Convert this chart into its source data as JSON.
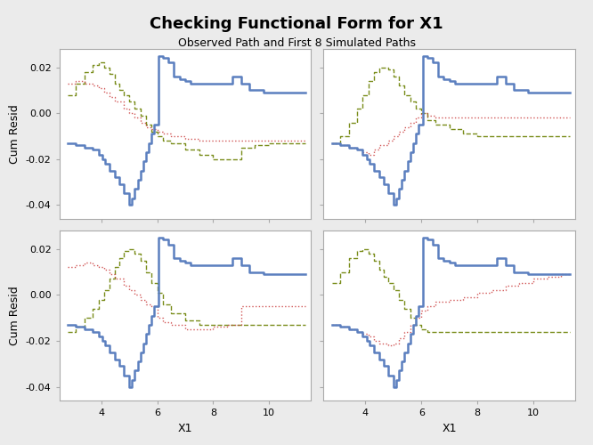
{
  "title": "Checking Functional Form for X1",
  "subtitle": "Observed Path and First 8 Simulated Paths",
  "xlabel": "X1",
  "ylabel": "Cum Resid",
  "xlim": [
    2.5,
    11.5
  ],
  "ylim": [
    -0.046,
    0.028
  ],
  "yticks": [
    -0.04,
    -0.02,
    0.0,
    0.02
  ],
  "xticks": [
    4,
    6,
    8,
    10
  ],
  "blue_color": "#5B7FBF",
  "red_color": "#CC4444",
  "olive_color": "#6B8000",
  "bg_color": "#EBEBEB",
  "panel_bg": "#FFFFFF",
  "title_fontsize": 13,
  "subtitle_fontsize": 9,
  "axis_label_fontsize": 9,
  "tick_fontsize": 8,
  "blue_lw": 1.8,
  "sim_lw": 1.0,
  "obs_x": [
    2.8,
    3.1,
    3.4,
    3.7,
    3.9,
    4.05,
    4.15,
    4.3,
    4.5,
    4.65,
    4.8,
    5.0,
    5.1,
    5.2,
    5.3,
    5.4,
    5.5,
    5.6,
    5.7,
    5.8,
    5.9,
    6.05,
    6.2,
    6.4,
    6.6,
    6.8,
    7.0,
    7.2,
    7.5,
    7.8,
    8.0,
    8.3,
    8.7,
    9.0,
    9.3,
    9.6,
    9.8,
    10.2,
    10.7,
    11.1,
    11.3
  ],
  "obs_y": [
    -0.013,
    -0.014,
    -0.015,
    -0.016,
    -0.018,
    -0.02,
    -0.022,
    -0.025,
    -0.028,
    -0.031,
    -0.035,
    -0.04,
    -0.037,
    -0.033,
    -0.029,
    -0.025,
    -0.021,
    -0.017,
    -0.013,
    -0.009,
    -0.005,
    0.025,
    0.024,
    0.022,
    0.016,
    0.015,
    0.014,
    0.013,
    0.013,
    0.013,
    0.013,
    0.013,
    0.016,
    0.013,
    0.01,
    0.01,
    0.009,
    0.009,
    0.009,
    0.009,
    0.009
  ],
  "panel_red_x": [
    [
      2.8,
      3.1,
      3.4,
      3.7,
      3.9,
      4.1,
      4.3,
      4.5,
      4.8,
      5.0,
      5.2,
      5.4,
      5.6,
      5.8,
      6.0,
      6.2,
      6.5,
      7.0,
      7.5,
      8.0,
      8.5,
      9.0,
      9.5,
      10.0,
      10.5,
      11.0,
      11.3
    ],
    [
      2.8,
      3.1,
      3.4,
      3.7,
      3.9,
      4.1,
      4.3,
      4.5,
      4.8,
      5.0,
      5.2,
      5.4,
      5.6,
      5.8,
      6.0,
      6.2,
      6.5,
      7.0,
      7.5,
      8.0,
      8.5,
      9.0,
      9.5,
      10.0,
      10.5,
      11.0,
      11.3
    ],
    [
      2.8,
      3.1,
      3.4,
      3.7,
      3.9,
      4.1,
      4.3,
      4.5,
      4.8,
      5.0,
      5.2,
      5.4,
      5.6,
      5.8,
      6.0,
      6.2,
      6.5,
      7.0,
      7.5,
      8.0,
      8.5,
      9.0,
      9.5,
      10.0,
      10.5,
      11.0,
      11.3
    ],
    [
      2.8,
      3.1,
      3.4,
      3.7,
      3.9,
      4.1,
      4.3,
      4.5,
      4.8,
      5.0,
      5.2,
      5.4,
      5.6,
      5.8,
      6.0,
      6.2,
      6.5,
      7.0,
      7.5,
      8.0,
      8.5,
      9.0,
      9.5,
      10.0,
      10.5,
      11.0,
      11.3
    ]
  ],
  "panel_red_y": [
    [
      0.013,
      0.014,
      0.013,
      0.012,
      0.011,
      0.009,
      0.007,
      0.005,
      0.002,
      0.0,
      -0.002,
      -0.004,
      -0.006,
      -0.007,
      -0.008,
      -0.009,
      -0.01,
      -0.011,
      -0.012,
      -0.012,
      -0.012,
      -0.012,
      -0.012,
      -0.012,
      -0.012,
      -0.012,
      -0.012
    ],
    [
      -0.013,
      -0.014,
      -0.015,
      -0.016,
      -0.017,
      -0.018,
      -0.016,
      -0.014,
      -0.012,
      -0.01,
      -0.008,
      -0.006,
      -0.004,
      -0.002,
      0.0,
      -0.001,
      -0.002,
      -0.002,
      -0.002,
      -0.002,
      -0.002,
      -0.002,
      -0.002,
      -0.002,
      -0.002,
      -0.002,
      -0.002
    ],
    [
      0.012,
      0.013,
      0.014,
      0.013,
      0.012,
      0.011,
      0.009,
      0.007,
      0.004,
      0.002,
      0.0,
      -0.002,
      -0.004,
      -0.005,
      -0.01,
      -0.012,
      -0.013,
      -0.015,
      -0.015,
      -0.014,
      -0.013,
      -0.005,
      -0.005,
      -0.005,
      -0.005,
      -0.005,
      -0.005
    ],
    [
      -0.013,
      -0.014,
      -0.015,
      -0.016,
      -0.017,
      -0.018,
      -0.02,
      -0.021,
      -0.022,
      -0.021,
      -0.019,
      -0.016,
      -0.013,
      -0.01,
      -0.007,
      -0.005,
      -0.003,
      -0.002,
      -0.001,
      0.001,
      0.002,
      0.004,
      0.005,
      0.007,
      0.008,
      0.009,
      0.009
    ]
  ],
  "panel_olive_x": [
    [
      2.8,
      3.1,
      3.4,
      3.7,
      3.9,
      4.1,
      4.3,
      4.5,
      4.65,
      4.8,
      5.0,
      5.2,
      5.4,
      5.6,
      5.8,
      6.0,
      6.2,
      6.5,
      7.0,
      7.5,
      8.0,
      8.5,
      9.0,
      9.5,
      10.0,
      10.5,
      11.0,
      11.3
    ],
    [
      2.8,
      3.1,
      3.4,
      3.7,
      3.9,
      4.1,
      4.3,
      4.5,
      4.65,
      4.8,
      5.0,
      5.2,
      5.4,
      5.6,
      5.8,
      6.0,
      6.2,
      6.5,
      7.0,
      7.5,
      8.0,
      8.5,
      9.0,
      9.5,
      10.0,
      10.5,
      11.0,
      11.3
    ],
    [
      2.8,
      3.1,
      3.4,
      3.7,
      3.9,
      4.1,
      4.3,
      4.5,
      4.65,
      4.8,
      5.0,
      5.2,
      5.4,
      5.6,
      5.8,
      6.0,
      6.2,
      6.5,
      7.0,
      7.5,
      8.0,
      8.5,
      9.0,
      9.5,
      10.0,
      10.5,
      11.0,
      11.3
    ],
    [
      2.8,
      3.1,
      3.4,
      3.7,
      3.9,
      4.1,
      4.3,
      4.5,
      4.65,
      4.8,
      5.0,
      5.2,
      5.4,
      5.6,
      5.8,
      6.0,
      6.2,
      6.5,
      7.0,
      7.5,
      8.0,
      8.5,
      9.0,
      9.5,
      10.0,
      10.5,
      11.0,
      11.3
    ]
  ],
  "panel_olive_y": [
    [
      0.008,
      0.013,
      0.018,
      0.021,
      0.022,
      0.02,
      0.017,
      0.013,
      0.01,
      0.008,
      0.005,
      0.002,
      -0.001,
      -0.005,
      -0.008,
      -0.01,
      -0.012,
      -0.013,
      -0.016,
      -0.018,
      -0.02,
      -0.02,
      -0.015,
      -0.014,
      -0.013,
      -0.013,
      -0.013,
      -0.013
    ],
    [
      -0.013,
      -0.01,
      -0.004,
      0.002,
      0.008,
      0.014,
      0.018,
      0.02,
      0.02,
      0.019,
      0.016,
      0.012,
      0.008,
      0.005,
      0.002,
      0.0,
      -0.003,
      -0.005,
      -0.007,
      -0.009,
      -0.01,
      -0.01,
      -0.01,
      -0.01,
      -0.01,
      -0.01,
      -0.01,
      -0.01
    ],
    [
      -0.016,
      -0.014,
      -0.01,
      -0.006,
      -0.002,
      0.002,
      0.007,
      0.012,
      0.016,
      0.019,
      0.02,
      0.018,
      0.015,
      0.01,
      0.005,
      0.001,
      -0.004,
      -0.008,
      -0.011,
      -0.013,
      -0.013,
      -0.013,
      -0.013,
      -0.013,
      -0.013,
      -0.013,
      -0.013,
      -0.013
    ],
    [
      0.005,
      0.01,
      0.016,
      0.019,
      0.02,
      0.018,
      0.015,
      0.011,
      0.008,
      0.005,
      0.002,
      -0.002,
      -0.006,
      -0.01,
      -0.013,
      -0.015,
      -0.016,
      -0.016,
      -0.016,
      -0.016,
      -0.016,
      -0.016,
      -0.016,
      -0.016,
      -0.016,
      -0.016,
      -0.016,
      -0.016
    ]
  ]
}
